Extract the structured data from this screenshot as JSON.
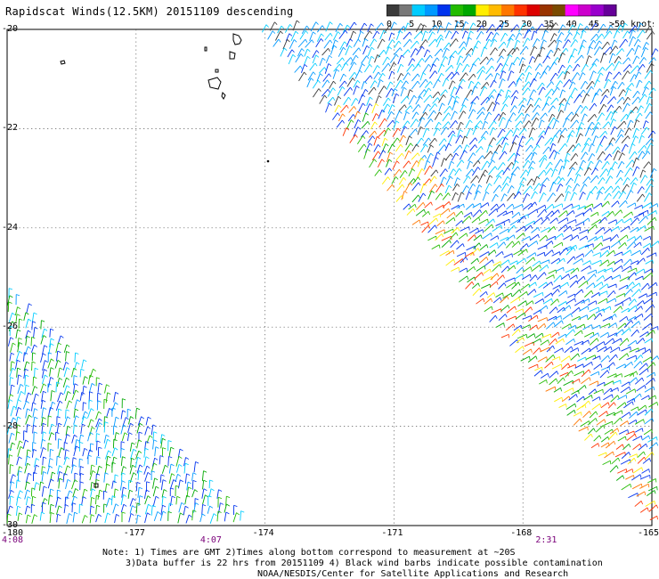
{
  "title": "Rapidscat Winds(12.5KM) 20151109 descending",
  "legend": {
    "ticks": [
      "0",
      "5",
      "10",
      "15",
      "20",
      "25",
      "30",
      "35",
      "40",
      "45",
      ">50 knots"
    ],
    "colors": [
      "#3a3a3a",
      "#787878",
      "#00ccff",
      "#0099ff",
      "#0033ee",
      "#22bb00",
      "#00a800",
      "#ffee00",
      "#ffbb00",
      "#ff7700",
      "#ff3300",
      "#dd0000",
      "#993300",
      "#7a4a00",
      "#ff00ff",
      "#cc00cc",
      "#9900cc",
      "#660099"
    ]
  },
  "lat_labels": [
    "-20",
    "-22",
    "-24",
    "-26",
    "-28",
    "-30"
  ],
  "lon_labels": [
    "-180",
    "-177",
    "-174",
    "-171",
    "-168",
    "-165"
  ],
  "time_labels": [
    {
      "text": "4:08",
      "lon": -180
    },
    {
      "text": "4:07",
      "lon": -175.3
    },
    {
      "text": "2:31",
      "lon": -167.5
    }
  ],
  "notes": [
    "Note: 1) Times are GMT 2)Times along bottom correspond to measurement at ~20S",
    "3)Data buffer is 22 hrs from 20151109 4) Black wind barbs indicate possible contamination",
    "NOAA/NESDIS/Center for Satellite Applications and Research"
  ],
  "map": {
    "lon_range": [
      -180,
      -165
    ],
    "lat_range": [
      -30,
      -20
    ],
    "gridlines": "dotted"
  }
}
